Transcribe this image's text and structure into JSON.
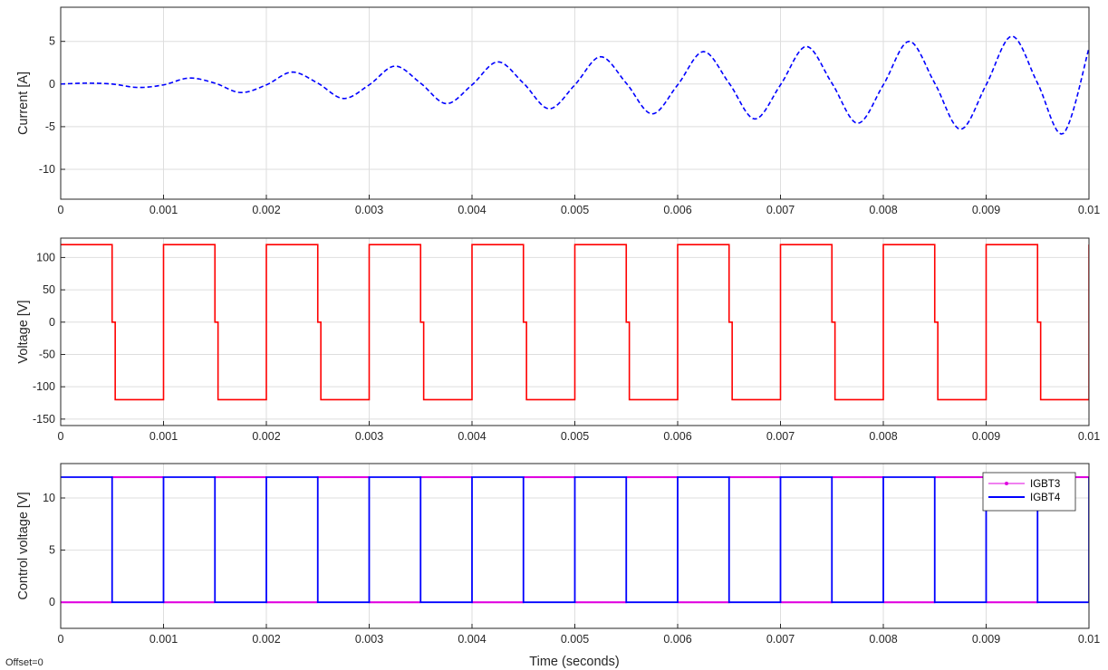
{
  "scope": {
    "offset_label": "Offset=0",
    "xlabel": "Time (seconds)"
  },
  "chart_data": [
    {
      "type": "line",
      "ylabel": "Current [A]",
      "xlim": [
        0,
        0.01
      ],
      "ylim": [
        -13.5,
        9.0
      ],
      "xticks": [
        0,
        0.001,
        0.002,
        0.003,
        0.004,
        0.005,
        0.006,
        0.007,
        0.008,
        0.009,
        0.01
      ],
      "xtick_labels": [
        "0",
        "0.001",
        "0.002",
        "0.003",
        "0.004",
        "0.005",
        "0.006",
        "0.007",
        "0.008",
        "0.009",
        "0.01"
      ],
      "yticks": [
        -10,
        -5,
        0,
        5
      ],
      "ytick_labels": [
        "-10",
        "-5",
        "0",
        "5"
      ],
      "grid": true,
      "series": [
        {
          "style": "dashed",
          "color": "#0000ff",
          "x": [
            0,
            0.00025,
            0.0005,
            0.00075,
            0.001,
            0.00125,
            0.0015,
            0.00175,
            0.002,
            0.00225,
            0.0025,
            0.00275,
            0.003,
            0.00325,
            0.0035,
            0.00375,
            0.004,
            0.00425,
            0.0045,
            0.00475,
            0.005,
            0.00525,
            0.0055,
            0.00575,
            0.006,
            0.00625,
            0.0065,
            0.00675,
            0.007,
            0.00725,
            0.0075,
            0.00775,
            0.008,
            0.00825,
            0.0085,
            0.00875,
            0.009,
            0.00925,
            0.0095,
            0.00975,
            0.01
          ],
          "y": [
            0,
            0.1,
            0,
            -0.4,
            -0.1,
            0.7,
            0.1,
            -1.0,
            -0.1,
            1.4,
            0.1,
            -1.7,
            -0.1,
            2.1,
            0.1,
            -2.3,
            -0.1,
            2.6,
            0.1,
            -2.9,
            -0.1,
            3.2,
            0.1,
            -3.5,
            -0.1,
            3.8,
            0.1,
            -4.1,
            -0.1,
            4.4,
            0.1,
            -4.6,
            -0.1,
            5.0,
            0.1,
            -5.3,
            -0.1,
            5.6,
            0.1,
            -5.8,
            4.2
          ]
        }
      ]
    },
    {
      "type": "line",
      "ylabel": "Voltage [V]",
      "xlim": [
        0,
        0.01
      ],
      "ylim": [
        -160,
        130
      ],
      "xticks": [
        0,
        0.001,
        0.002,
        0.003,
        0.004,
        0.005,
        0.006,
        0.007,
        0.008,
        0.009,
        0.01
      ],
      "xtick_labels": [
        "0",
        "0.001",
        "0.002",
        "0.003",
        "0.004",
        "0.005",
        "0.006",
        "0.007",
        "0.008",
        "0.009",
        "0.01"
      ],
      "yticks": [
        -150,
        -100,
        -50,
        0,
        50,
        100
      ],
      "ytick_labels": [
        "-150",
        "-100",
        "-50",
        "0",
        "50",
        "100"
      ],
      "grid": true,
      "series": [
        {
          "style": "solid",
          "color": "#ff0000",
          "high": 120,
          "low": -120,
          "period": 0.001,
          "duty_high": 0.5,
          "notch_value": 0,
          "notch_width": 3e-05
        }
      ]
    },
    {
      "type": "line",
      "ylabel": "Control voltage [V]",
      "xlabel": "Time (seconds)",
      "xlim": [
        0,
        0.01
      ],
      "ylim": [
        -2.5,
        13.3
      ],
      "xticks": [
        0,
        0.001,
        0.002,
        0.003,
        0.004,
        0.005,
        0.006,
        0.007,
        0.008,
        0.009,
        0.01
      ],
      "xtick_labels": [
        "0",
        "0.001",
        "0.002",
        "0.003",
        "0.004",
        "0.005",
        "0.006",
        "0.007",
        "0.008",
        "0.009",
        "0.01"
      ],
      "yticks": [
        0,
        5,
        10
      ],
      "ytick_labels": [
        "0",
        "5",
        "10"
      ],
      "grid": true,
      "legend": "top-right",
      "series": [
        {
          "name": "IGBT3",
          "style": "solid-markers",
          "color": "#e000e0",
          "high": 12,
          "low": 0,
          "period": 0.001,
          "high_from": 0.0005,
          "high_to": 0.001
        },
        {
          "name": "IGBT4",
          "style": "solid",
          "color": "#0000ff",
          "high": 12,
          "low": 0,
          "period": 0.001,
          "high_from": 0.0,
          "high_to": 0.0005
        }
      ]
    }
  ]
}
